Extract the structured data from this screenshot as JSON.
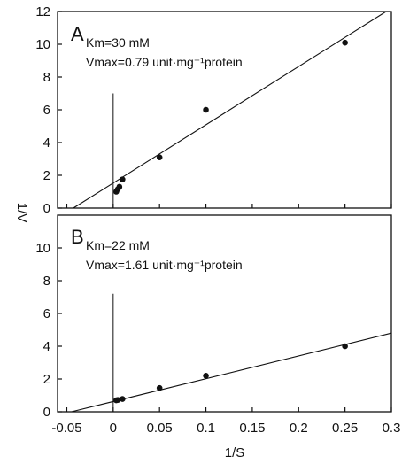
{
  "chart_data": [
    {
      "type": "scatter",
      "panel": "A",
      "annotation_km": "Km=30 mM",
      "annotation_vmax": "Vmax=0.79 unit·mg⁻¹protein",
      "xlim": [
        -0.06,
        0.3
      ],
      "ylim": [
        0,
        12
      ],
      "yticks": [
        "0",
        "2",
        "4",
        "6",
        "8",
        "10",
        "12"
      ],
      "x": [
        0.0033,
        0.005,
        0.0067,
        0.01,
        0.05,
        0.1,
        0.25
      ],
      "y": [
        1.0,
        1.15,
        1.3,
        1.75,
        3.1,
        6.0,
        10.1
      ],
      "fit_line": {
        "x": [
          -0.043,
          0.3
        ],
        "y": [
          0,
          12.2
        ]
      },
      "reference_line": {
        "x": 0,
        "y": [
          0,
          7
        ]
      }
    },
    {
      "type": "scatter",
      "panel": "B",
      "annotation_km": "Km=22 mM",
      "annotation_vmax": "Vmax=1.61 unit·mg⁻¹protein",
      "xlim": [
        -0.06,
        0.3
      ],
      "ylim": [
        0,
        12
      ],
      "yticks": [
        "0",
        "2",
        "4",
        "6",
        "8",
        "10"
      ],
      "x": [
        0.0033,
        0.005,
        0.01,
        0.05,
        0.1,
        0.25
      ],
      "y": [
        0.7,
        0.72,
        0.78,
        1.45,
        2.2,
        4.0
      ],
      "fit_line": {
        "x": [
          -0.045,
          0.3
        ],
        "y": [
          0,
          4.8
        ]
      },
      "reference_line": {
        "x": 0,
        "y": [
          0,
          7.2
        ]
      }
    }
  ],
  "axes": {
    "xlabel": "1/S",
    "ylabel": "1/V",
    "xticks": [
      "-0.05",
      "0",
      "0.05",
      "0.1",
      "0.15",
      "0.2",
      "0.25",
      "0.3"
    ]
  }
}
